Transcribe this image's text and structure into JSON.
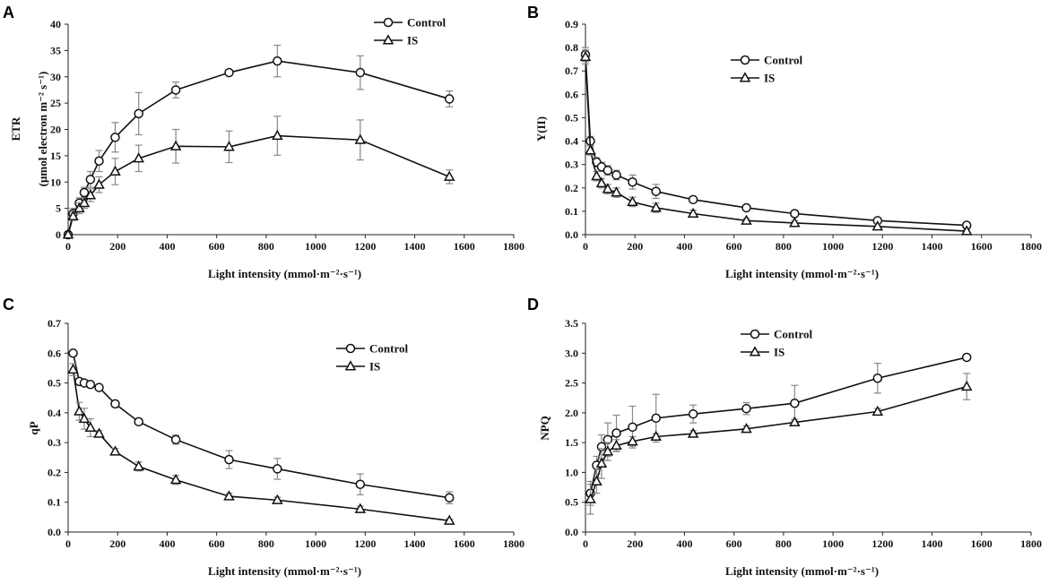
{
  "chart_data": [
    {
      "type": "line",
      "panel_letter": "A",
      "xlabel": "Light intensity  (mmol·m⁻²·s⁻¹)",
      "ylabel": "ETR",
      "ylabel2": "(μmol electron m⁻² s⁻¹)",
      "xlim": [
        0,
        1800
      ],
      "ylim": [
        0,
        40
      ],
      "xticks": [
        0,
        200,
        400,
        600,
        800,
        1000,
        1200,
        1400,
        1600,
        1800
      ],
      "yticks": [
        0,
        5,
        10,
        15,
        20,
        25,
        30,
        35,
        40
      ],
      "ytick_decimals": 0,
      "legend_position": "top-right",
      "x": [
        0,
        20,
        45,
        65,
        90,
        125,
        190,
        285,
        435,
        650,
        845,
        1180,
        1540
      ],
      "series": [
        {
          "name": "Control",
          "marker": "circle",
          "values": [
            0,
            4,
            6,
            8,
            10.5,
            14,
            18.5,
            23,
            27.5,
            30.8,
            33,
            30.8,
            25.8
          ],
          "errors": [
            0,
            1,
            1,
            1,
            1.5,
            2,
            2.8,
            4,
            1.5,
            0.5,
            3,
            3.2,
            1.5
          ]
        },
        {
          "name": "IS",
          "marker": "triangle",
          "values": [
            0,
            3.5,
            5,
            6,
            7.5,
            9.5,
            12,
            14.5,
            16.8,
            16.7,
            18.8,
            18,
            11
          ],
          "errors": [
            0,
            0.8,
            1,
            1,
            1.2,
            1.5,
            2.5,
            2.5,
            3.2,
            3,
            3.7,
            3.8,
            1.3
          ]
        }
      ]
    },
    {
      "type": "line",
      "panel_letter": "B",
      "xlabel": "Light intensity  (mmol·m⁻²·s⁻¹)",
      "ylabel": "Y(II)",
      "xlim": [
        0,
        1800
      ],
      "ylim": [
        0,
        0.9
      ],
      "xticks": [
        0,
        200,
        400,
        600,
        800,
        1000,
        1200,
        1400,
        1600,
        1800
      ],
      "yticks": [
        0,
        0.1,
        0.2,
        0.3,
        0.4,
        0.5,
        0.6,
        0.7,
        0.8,
        0.9
      ],
      "ytick_decimals": 1,
      "legend_position": "upper-middle",
      "x": [
        0,
        20,
        45,
        65,
        90,
        125,
        190,
        285,
        435,
        650,
        845,
        1180,
        1540
      ],
      "series": [
        {
          "name": "Control",
          "marker": "circle",
          "values": [
            0.77,
            0.4,
            0.31,
            0.29,
            0.275,
            0.255,
            0.225,
            0.185,
            0.15,
            0.115,
            0.09,
            0.06,
            0.04
          ],
          "errors": [
            0.03,
            0.02,
            0.02,
            0.02,
            0.02,
            0.02,
            0.03,
            0.03,
            0.01,
            0.01,
            0.01,
            0.01,
            0.005
          ]
        },
        {
          "name": "IS",
          "marker": "triangle",
          "values": [
            0.76,
            0.36,
            0.25,
            0.22,
            0.195,
            0.18,
            0.14,
            0.115,
            0.09,
            0.06,
            0.05,
            0.035,
            0.015
          ],
          "errors": [
            0.03,
            0.02,
            0.02,
            0.02,
            0.02,
            0.02,
            0.02,
            0.02,
            0.015,
            0.01,
            0.01,
            0.01,
            0.005
          ]
        }
      ]
    },
    {
      "type": "line",
      "panel_letter": "C",
      "xlabel": "Light intensity  (mmol·m⁻²·s⁻¹)",
      "ylabel": "qP",
      "xlim": [
        0,
        1800
      ],
      "ylim": [
        0,
        0.7
      ],
      "xticks": [
        0,
        200,
        400,
        600,
        800,
        1000,
        1200,
        1400,
        1600,
        1800
      ],
      "yticks": [
        0,
        0.1,
        0.2,
        0.3,
        0.4,
        0.5,
        0.6,
        0.7
      ],
      "ytick_decimals": 1,
      "legend_position": "top-right",
      "x": [
        20,
        45,
        65,
        90,
        125,
        190,
        285,
        435,
        650,
        845,
        1180,
        1540
      ],
      "series": [
        {
          "name": "Control",
          "marker": "circle",
          "values": [
            0.6,
            0.505,
            0.5,
            0.495,
            0.485,
            0.43,
            0.37,
            0.31,
            0.243,
            0.212,
            0.16,
            0.115
          ],
          "errors": [
            0.01,
            0.01,
            0.01,
            0.01,
            0.01,
            0.01,
            0.01,
            0.015,
            0.03,
            0.035,
            0.035,
            0.02
          ]
        },
        {
          "name": "IS",
          "marker": "triangle",
          "values": [
            0.545,
            0.405,
            0.38,
            0.35,
            0.33,
            0.27,
            0.22,
            0.175,
            0.12,
            0.107,
            0.077,
            0.038
          ],
          "errors": [
            0.02,
            0.03,
            0.035,
            0.03,
            0.01,
            0.01,
            0.015,
            0.015,
            0.01,
            0.01,
            0.01,
            0.005
          ]
        }
      ]
    },
    {
      "type": "line",
      "panel_letter": "D",
      "xlabel": "Light intensity  (mmol·m⁻²·s⁻¹)",
      "ylabel": "NPQ",
      "xlim": [
        0,
        1800
      ],
      "ylim": [
        0,
        3.5
      ],
      "xticks": [
        0,
        200,
        400,
        600,
        800,
        1000,
        1200,
        1400,
        1600,
        1800
      ],
      "yticks": [
        0,
        0.5,
        1.0,
        1.5,
        2.0,
        2.5,
        3.0,
        3.5
      ],
      "ytick_decimals": 1,
      "legend_position": "upper-left",
      "x": [
        20,
        45,
        65,
        90,
        125,
        190,
        285,
        435,
        650,
        845,
        1180,
        1540
      ],
      "series": [
        {
          "name": "Control",
          "marker": "circle",
          "values": [
            0.65,
            1.12,
            1.43,
            1.55,
            1.66,
            1.76,
            1.91,
            1.98,
            2.07,
            2.16,
            2.58,
            2.93
          ],
          "errors": [
            0.2,
            0.15,
            0.2,
            0.28,
            0.3,
            0.35,
            0.4,
            0.15,
            0.1,
            0.3,
            0.25,
            0.05
          ]
        },
        {
          "name": "IS",
          "marker": "triangle",
          "values": [
            0.55,
            0.85,
            1.15,
            1.35,
            1.45,
            1.52,
            1.6,
            1.65,
            1.73,
            1.84,
            2.02,
            2.44
          ],
          "errors": [
            0.25,
            0.2,
            0.25,
            0.15,
            0.1,
            0.08,
            0.05,
            0.05,
            0.05,
            0.05,
            0.05,
            0.22
          ]
        }
      ]
    }
  ]
}
